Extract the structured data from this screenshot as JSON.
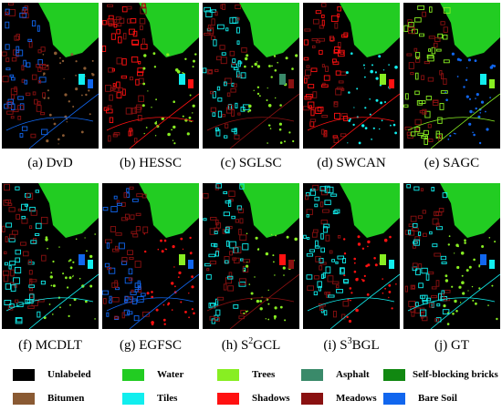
{
  "panels": [
    {
      "prefix": "(a) DvD",
      "sup": "",
      "suffix": ""
    },
    {
      "prefix": "(b) HESSC",
      "sup": "",
      "suffix": ""
    },
    {
      "prefix": "(c) SGLSC",
      "sup": "",
      "suffix": ""
    },
    {
      "prefix": "(d) SWCAN",
      "sup": "",
      "suffix": ""
    },
    {
      "prefix": "(e) SAGC",
      "sup": "",
      "suffix": ""
    },
    {
      "prefix": "(f) MCDLT",
      "sup": "",
      "suffix": ""
    },
    {
      "prefix": "(g) EGFSC",
      "sup": "",
      "suffix": ""
    },
    {
      "prefix": "(h) S",
      "sup": "2",
      "suffix": "GCL"
    },
    {
      "prefix": "(i) S",
      "sup": "3",
      "suffix": "BGL"
    },
    {
      "prefix": "(j) GT",
      "sup": "",
      "suffix": ""
    }
  ],
  "legend": [
    {
      "label": "Unlabeled",
      "color": "#000000"
    },
    {
      "label": "Water",
      "color": "#22cc22"
    },
    {
      "label": "Trees",
      "color": "#88ee22"
    },
    {
      "label": "Asphalt",
      "color": "#3a8a6a"
    },
    {
      "label": "Self-blocking bricks",
      "color": "#118811"
    },
    {
      "label": "Bitumen",
      "color": "#8a5a33"
    },
    {
      "label": "Tiles",
      "color": "#11eeee"
    },
    {
      "label": "Shadows",
      "color": "#ff1111"
    },
    {
      "label": "Meadows",
      "color": "#8a1111"
    },
    {
      "label": "Bare Soil",
      "color": "#1166ee"
    }
  ]
}
